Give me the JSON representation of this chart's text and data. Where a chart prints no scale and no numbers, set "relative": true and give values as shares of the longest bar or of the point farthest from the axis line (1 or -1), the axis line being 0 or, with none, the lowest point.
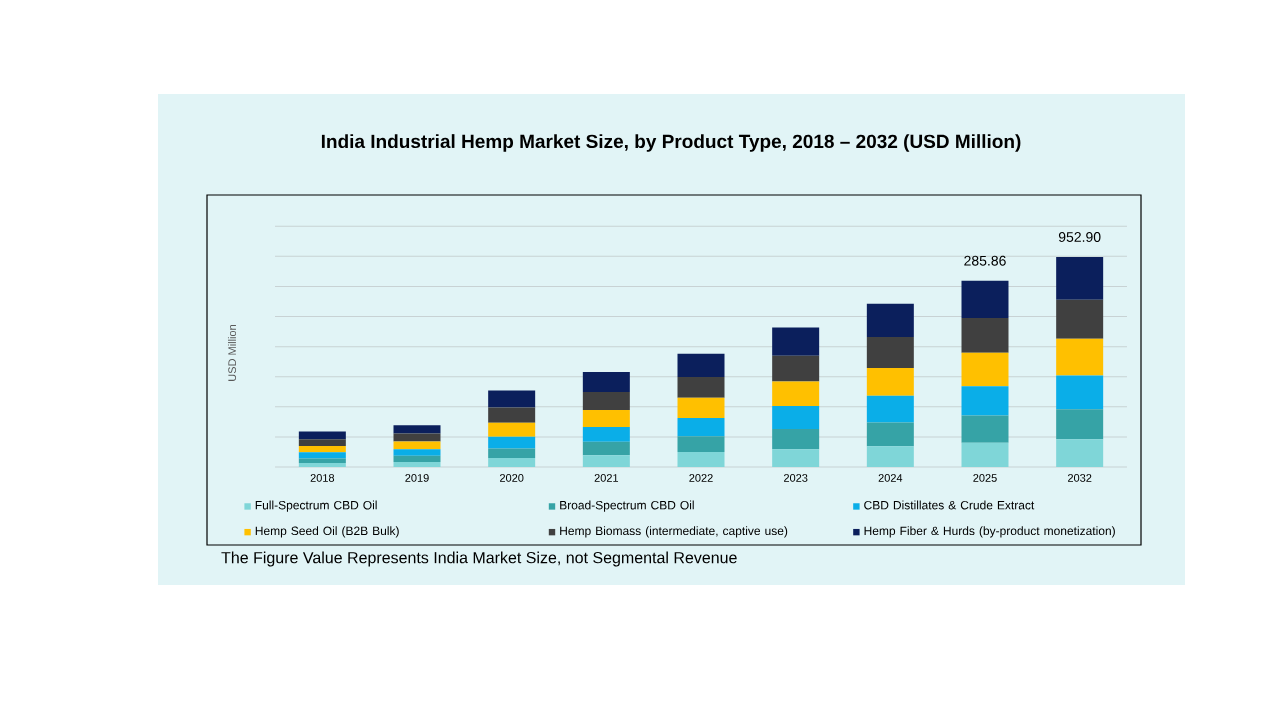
{
  "chart_data": {
    "type": "bar",
    "stacked": true,
    "relative": true,
    "title": "India Industrial Hemp Market Size, by Product Type, 2018 – 2032 (USD Million)",
    "ylabel": "USD Million",
    "categories": [
      "2018",
      "2019",
      "2020",
      "2021",
      "2022",
      "2023",
      "2024",
      "2025",
      "2032"
    ],
    "series": [
      {
        "name": "Full-Spectrum CBD Oil",
        "color": "#7fd6d8",
        "values": [
          0.019,
          0.024,
          0.043,
          0.056,
          0.072,
          0.085,
          0.099,
          0.115,
          0.132
        ]
      },
      {
        "name": "Broad-Spectrum CBD Oil",
        "color": "#36a3a6",
        "values": [
          0.021,
          0.029,
          0.045,
          0.064,
          0.075,
          0.096,
          0.113,
          0.13,
          0.143
        ]
      },
      {
        "name": "CBD Distillates & Crude Extract",
        "color": "#0aaee8",
        "values": [
          0.03,
          0.032,
          0.056,
          0.07,
          0.086,
          0.11,
          0.127,
          0.14,
          0.161
        ]
      },
      {
        "name": "Hemp Seed Oil (B2B Bulk)",
        "color": "#ffc000",
        "values": [
          0.03,
          0.037,
          0.067,
          0.081,
          0.097,
          0.116,
          0.132,
          0.159,
          0.175
        ]
      },
      {
        "name": "Hemp Biomass (intermediate, captive use)",
        "color": "#404040",
        "values": [
          0.032,
          0.037,
          0.072,
          0.086,
          0.099,
          0.123,
          0.148,
          0.166,
          0.185
        ]
      },
      {
        "name": "Hemp Fiber & Hurds (by-product monetization)",
        "color": "#0b1f5c",
        "values": [
          0.037,
          0.04,
          0.081,
          0.096,
          0.11,
          0.134,
          0.158,
          0.177,
          0.204
        ]
      }
    ],
    "grid": "y",
    "legend": "bottom",
    "annotations": [
      {
        "text": "285.86",
        "x": "2025",
        "y": 0.887
      },
      {
        "text": "952.90",
        "x": "2032",
        "y": 1.0
      },
      "The Figure Value Represents India Market Size, not Segmental Revenue"
    ]
  }
}
